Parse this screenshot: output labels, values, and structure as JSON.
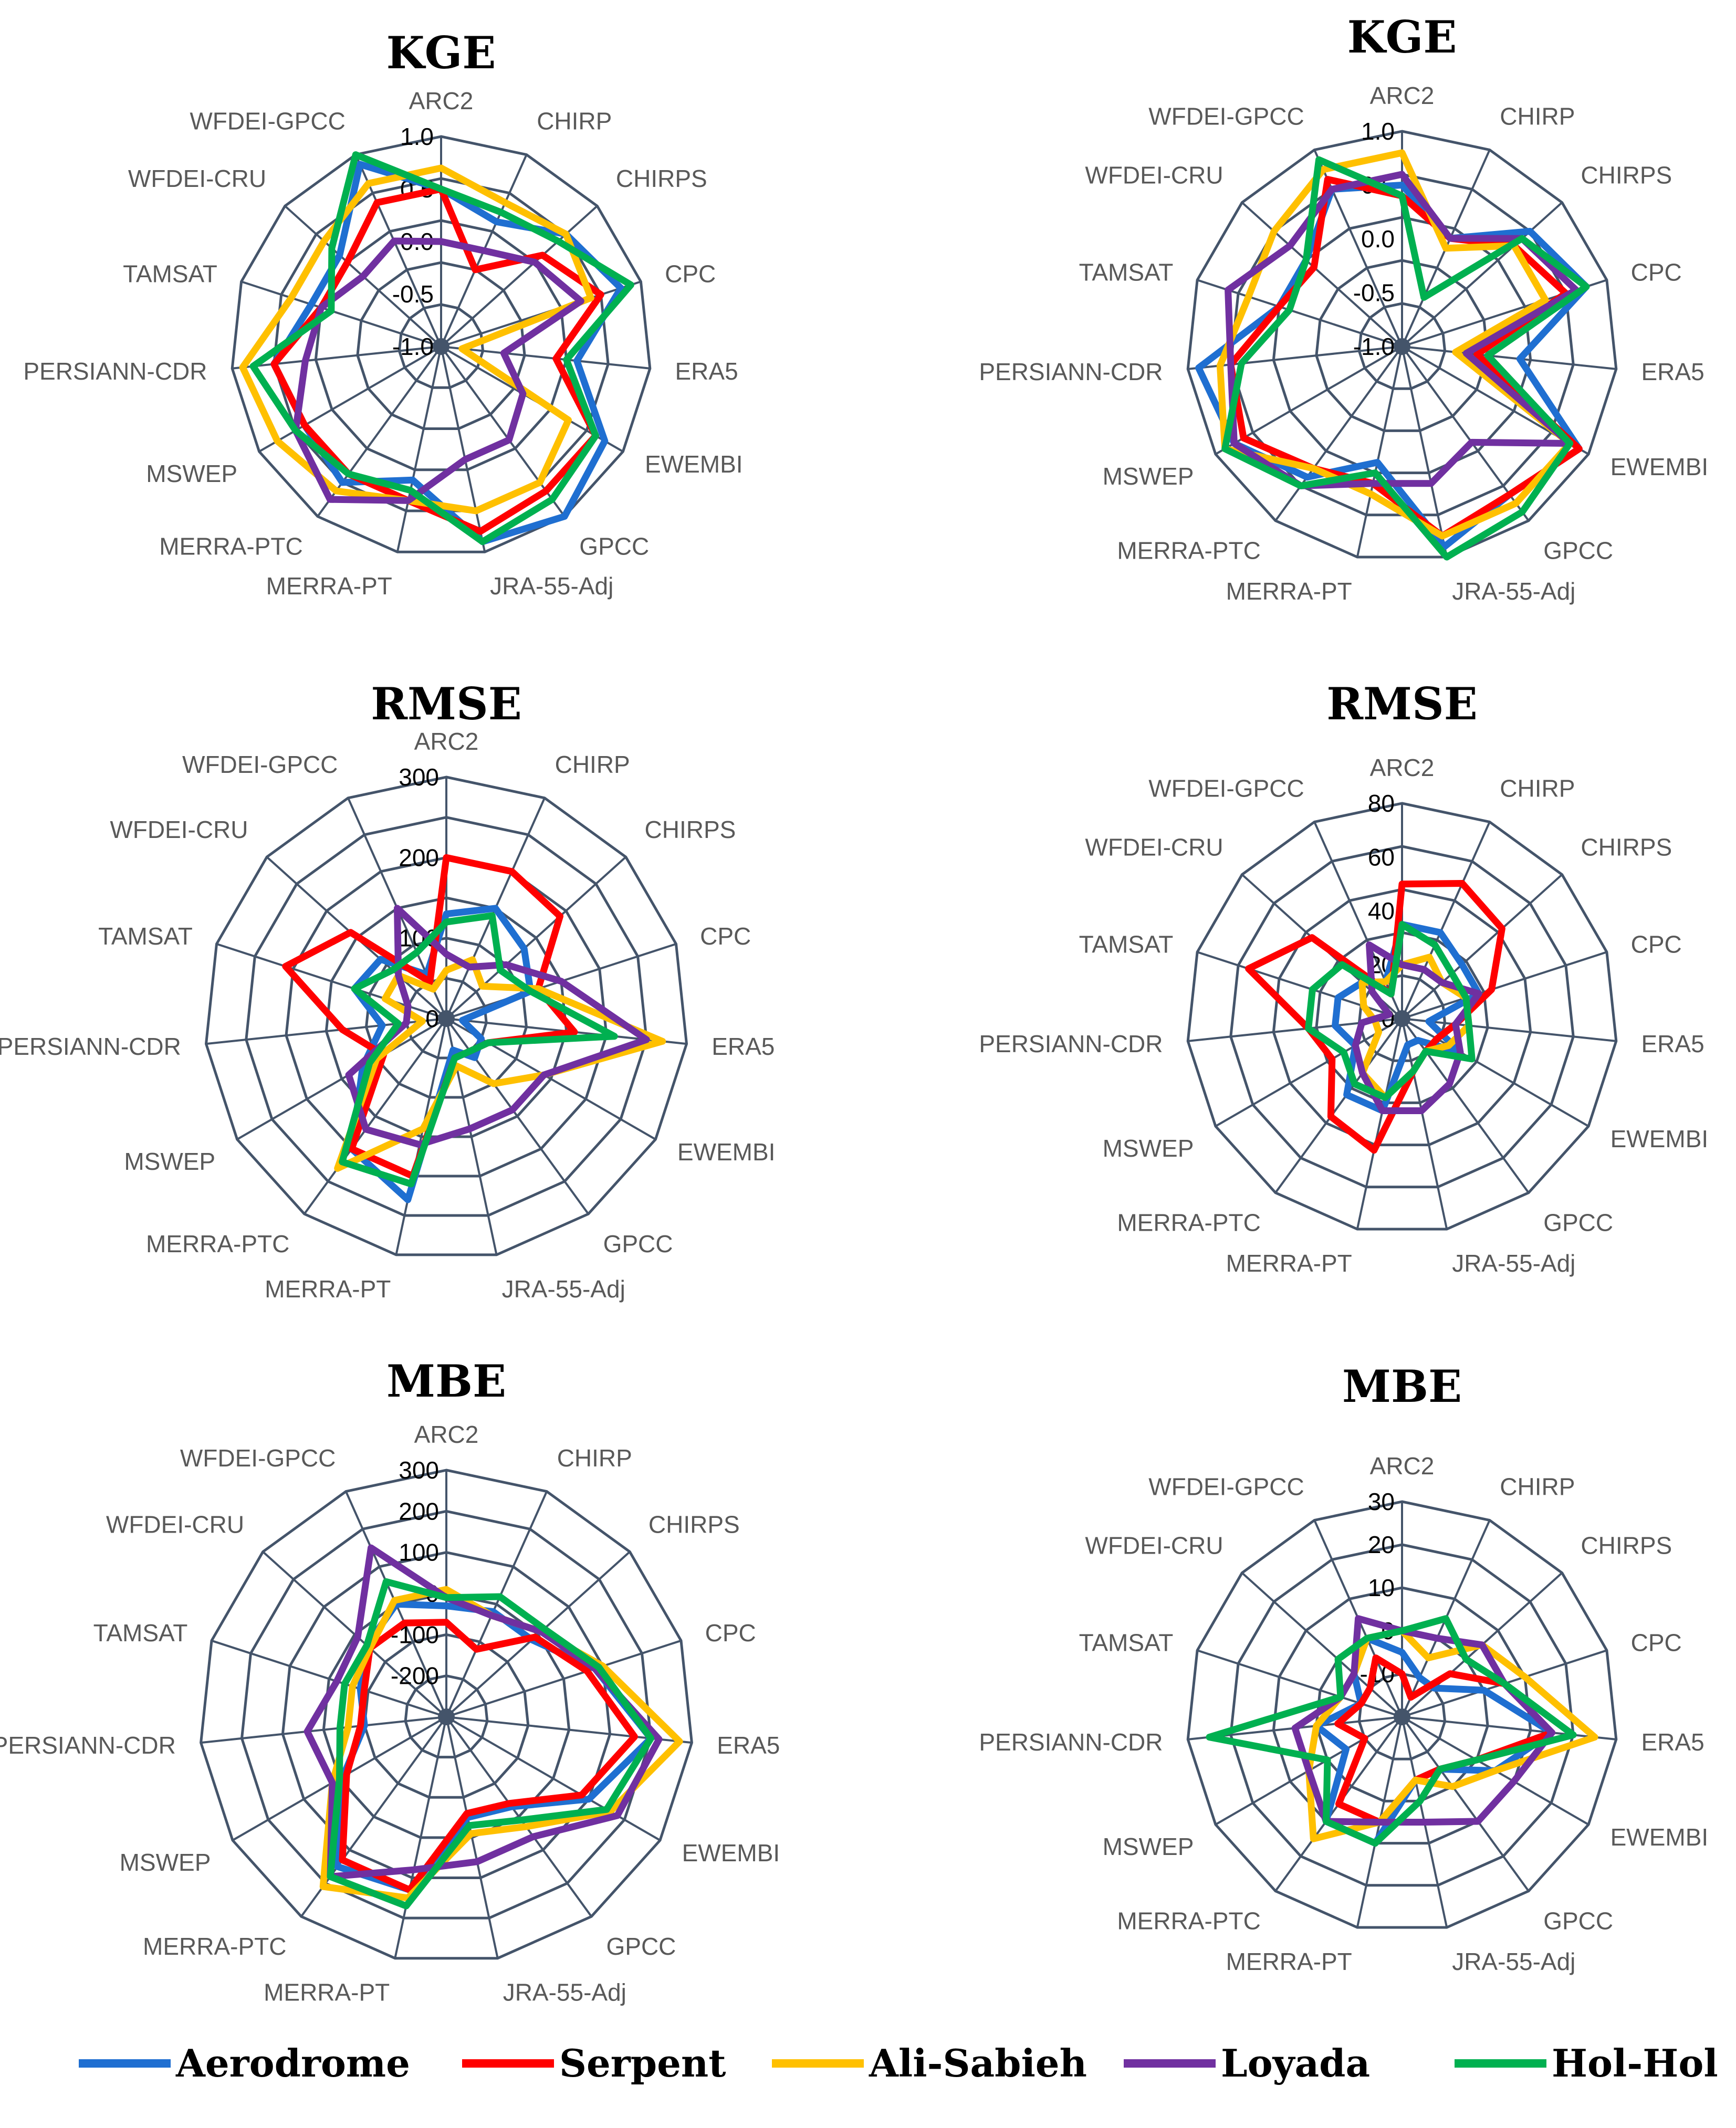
{
  "chart_data": [
    {
      "type": "radar",
      "title": "KGE",
      "axes": [
        "ARC2",
        "CHIRP",
        "CHIRPS",
        "CPC",
        "ERA5",
        "EWEMBI",
        "GPCC",
        "JRA-55-Adj",
        "MERRA-PT",
        "MERRA-PTC",
        "MSWEP",
        "PERSIANN-CDR",
        "TAMSAT",
        "WFDEI-CRU",
        "WFDEI-GPCC"
      ],
      "ticks": [
        "-1.0",
        "-0.5",
        "0.0",
        "0.5",
        "1.0"
      ],
      "rmin": -1.0,
      "rmax": 1.0,
      "series": [
        {
          "name": "Aerodrome",
          "color": "#1f6fd1",
          "values": [
            0.5,
            0.3,
            0.6,
            0.8,
            0.3,
            0.8,
            1.0,
            0.9,
            0.3,
            0.6,
            0.5,
            0.6,
            0.3,
            0.3,
            0.9
          ]
        },
        {
          "name": "Serpent",
          "color": "#ff0000",
          "values": [
            0.5,
            -0.2,
            0.3,
            0.6,
            0.1,
            0.7,
            0.7,
            0.8,
            0.5,
            0.5,
            0.5,
            0.6,
            0.2,
            0.2,
            0.5
          ]
        },
        {
          "name": "Ali-Sabieh",
          "color": "#ffc000",
          "values": [
            0.7,
            0.5,
            0.6,
            0.5,
            -0.8,
            0.4,
            0.6,
            0.6,
            0.5,
            0.7,
            0.8,
            0.9,
            0.5,
            0.5,
            0.7
          ]
        },
        {
          "name": "Loyada",
          "color": "#7030a0",
          "values": [
            0.0,
            0.0,
            0.2,
            0.4,
            -0.4,
            -0.1,
            0.1,
            0.1,
            0.5,
            0.8,
            0.6,
            0.3,
            0.2,
            0.0,
            0.1
          ]
        },
        {
          "name": "Hol-Hol",
          "color": "#00b050",
          "values": [
            0.5,
            0.4,
            0.5,
            0.9,
            0.2,
            0.7,
            0.8,
            0.9,
            0.4,
            0.5,
            0.6,
            0.8,
            0.1,
            0.4,
            1.0
          ]
        }
      ]
    },
    {
      "type": "radar",
      "title": "KGE",
      "axes": [
        "ARC2",
        "CHIRP",
        "CHIRPS",
        "CPC",
        "ERA5",
        "EWEMBI",
        "GPCC",
        "JRA-55-Adj",
        "MERRA-PT",
        "MERRA-PTC",
        "MSWEP",
        "PERSIANN-CDR",
        "TAMSAT",
        "WFDEI-CRU",
        "WFDEI-GPCC"
      ],
      "ticks": [
        "-1.0",
        "-0.5",
        "0.0",
        "0.5",
        "1.0"
      ],
      "rmin": -1.0,
      "rmax": 1.0,
      "series": [
        {
          "name": "Aerodrome",
          "color": "#1f6fd1",
          "values": [
            0.5,
            0.1,
            0.6,
            0.8,
            0.1,
            0.9,
            0.7,
            0.9,
            0.1,
            0.5,
            0.8,
            0.9,
            0.2,
            0.2,
            0.6
          ]
        },
        {
          "name": "Serpent",
          "color": "#ff0000",
          "values": [
            0.4,
            0.1,
            0.4,
            0.6,
            -0.3,
            0.9,
            0.7,
            0.8,
            0.3,
            0.4,
            0.7,
            0.6,
            0.2,
            0.1,
            0.7
          ]
        },
        {
          "name": "Ali-Sabieh",
          "color": "#ffc000",
          "values": [
            0.8,
            0.0,
            0.4,
            0.4,
            -0.5,
            0.8,
            0.8,
            0.8,
            0.4,
            0.4,
            0.9,
            0.7,
            0.5,
            0.6,
            0.8
          ]
        },
        {
          "name": "Loyada",
          "color": "#7030a0",
          "values": [
            0.6,
            0.1,
            0.5,
            0.7,
            -0.4,
            0.8,
            0.1,
            0.3,
            0.3,
            0.6,
            0.8,
            0.6,
            0.7,
            0.4,
            0.6
          ]
        },
        {
          "name": "Hol-Hol",
          "color": "#00b050",
          "values": [
            0.4,
            -0.5,
            0.5,
            0.8,
            -0.2,
            0.8,
            0.9,
            1.0,
            0.2,
            0.6,
            0.9,
            0.5,
            0.1,
            0.2,
            0.9
          ]
        }
      ]
    },
    {
      "type": "radar",
      "title": "RMSE",
      "axes": [
        "ARC2",
        "CHIRP",
        "CHIRPS",
        "CPC",
        "ERA5",
        "EWEMBI",
        "GPCC",
        "JRA-55-Adj",
        "MERRA-PT",
        "MERRA-PTC",
        "MSWEP",
        "PERSIANN-CDR",
        "TAMSAT",
        "WFDEI-CRU",
        "WFDEI-GPCC"
      ],
      "ticks": [
        "0",
        "100",
        "200",
        "300"
      ],
      "rmin": 0,
      "rmax": 300,
      "series": [
        {
          "name": "Aerodrome",
          "color": "#1f6fd1",
          "values": [
            130,
            150,
            130,
            110,
            20,
            50,
            60,
            40,
            230,
            200,
            120,
            80,
            120,
            110,
            60
          ]
        },
        {
          "name": "Serpent",
          "color": "#ff0000",
          "values": [
            200,
            200,
            190,
            120,
            160,
            60,
            50,
            50,
            200,
            200,
            90,
            130,
            210,
            160,
            50
          ]
        },
        {
          "name": "Ali-Sabieh",
          "color": "#ffc000",
          "values": [
            60,
            80,
            60,
            120,
            270,
            140,
            100,
            60,
            140,
            230,
            100,
            30,
            80,
            80,
            40
          ]
        },
        {
          "name": "Loyada",
          "color": "#7030a0",
          "values": [
            80,
            70,
            100,
            150,
            250,
            140,
            140,
            140,
            160,
            170,
            140,
            50,
            50,
            80,
            150
          ]
        },
        {
          "name": "Hol-Hol",
          "color": "#00b050",
          "values": [
            120,
            140,
            90,
            110,
            210,
            60,
            50,
            50,
            210,
            220,
            110,
            60,
            120,
            90,
            90
          ]
        }
      ]
    },
    {
      "type": "radar",
      "title": "RMSE",
      "axes": [
        "ARC2",
        "CHIRP",
        "CHIRPS",
        "CPC",
        "ERA5",
        "EWEMBI",
        "GPCC",
        "JRA-55-Adj",
        "MERRA-PT",
        "MERRA-PTC",
        "MSWEP",
        "PERSIANN-CDR",
        "TAMSAT",
        "WFDEI-CRU",
        "WFDEI-GPCC"
      ],
      "ticks": [
        "0",
        "20",
        "40",
        "60",
        "80"
      ],
      "rmin": 0,
      "rmax": 80,
      "series": [
        {
          "name": "Aerodrome",
          "color": "#1f6fd1",
          "values": [
            35,
            35,
            30,
            30,
            10,
            25,
            10,
            10,
            35,
            35,
            20,
            25,
            25,
            20,
            15
          ]
        },
        {
          "name": "Serpent",
          "color": "#ff0000",
          "values": [
            50,
            55,
            50,
            35,
            20,
            15,
            15,
            20,
            50,
            45,
            30,
            35,
            60,
            45,
            10
          ]
        },
        {
          "name": "Ali-Sabieh",
          "color": "#ffc000",
          "values": [
            20,
            25,
            20,
            25,
            25,
            20,
            15,
            20,
            30,
            25,
            10,
            10,
            15,
            20,
            15
          ]
        },
        {
          "name": "Loyada",
          "color": "#7030a0",
          "values": [
            20,
            20,
            20,
            30,
            20,
            25,
            30,
            35,
            35,
            25,
            20,
            15,
            5,
            15,
            30
          ]
        },
        {
          "name": "Hol-Hol",
          "color": "#00b050",
          "values": [
            35,
            30,
            25,
            25,
            25,
            30,
            15,
            20,
            30,
            30,
            25,
            35,
            35,
            30,
            10
          ]
        }
      ]
    },
    {
      "type": "radar",
      "title": "MBE",
      "axes": [
        "ARC2",
        "CHIRP",
        "CHIRPS",
        "CPC",
        "ERA5",
        "EWEMBI",
        "GPCC",
        "JRA-55-Adj",
        "MERRA-PT",
        "MERRA-PTC",
        "MSWEP",
        "PERSIANN-CDR",
        "TAMSAT",
        "WFDEI-CRU",
        "WFDEI-GPCC"
      ],
      "ticks": [
        "-200",
        "-100",
        "0",
        "100",
        "200",
        "300"
      ],
      "rmin": -300,
      "rmax": 300,
      "series": [
        {
          "name": "Aerodrome",
          "color": "#1f6fd1",
          "values": [
            -30,
            -20,
            -20,
            80,
            200,
            100,
            -30,
            -50,
            130,
            150,
            -10,
            -100,
            -80,
            -40,
            0
          ]
        },
        {
          "name": "Serpent",
          "color": "#ff0000",
          "values": [
            -70,
            -120,
            -10,
            60,
            160,
            80,
            -40,
            -60,
            130,
            130,
            -20,
            -90,
            -90,
            -50,
            -50
          ]
        },
        {
          "name": "Ali-Sabieh",
          "color": "#ffc000",
          "values": [
            10,
            -30,
            10,
            100,
            270,
            160,
            30,
            -10,
            150,
            210,
            20,
            -60,
            -60,
            -50,
            10
          ]
        },
        {
          "name": "Loyada",
          "color": "#7030a0",
          "values": [
            -10,
            -30,
            10,
            80,
            220,
            180,
            60,
            60,
            80,
            180,
            20,
            40,
            -20,
            -10,
            150
          ]
        },
        {
          "name": "Hol-Hol",
          "color": "#00b050",
          "values": [
            -10,
            20,
            20,
            90,
            200,
            150,
            10,
            -30,
            170,
            180,
            0,
            -40,
            -40,
            -40,
            60
          ]
        }
      ]
    },
    {
      "type": "radar",
      "title": "MBE",
      "axes": [
        "ARC2",
        "CHIRP",
        "CHIRPS",
        "CPC",
        "ERA5",
        "EWEMBI",
        "GPCC",
        "JRA-55-Adj",
        "MERRA-PT",
        "MERRA-PTC",
        "MSWEP",
        "PERSIANN-CDR",
        "TAMSAT",
        "WFDEI-CRU",
        "WFDEI-GPCC"
      ],
      "ticks": [
        "-10",
        "0",
        "10",
        "20",
        "30"
      ],
      "rmin": -20,
      "rmax": 30,
      "series": [
        {
          "name": "Aerodrome",
          "color": "#1f6fd1",
          "values": [
            -5,
            -10,
            -10,
            0,
            15,
            5,
            -5,
            -5,
            10,
            10,
            -5,
            0,
            -10,
            -5,
            0
          ]
        },
        {
          "name": "Serpent",
          "color": "#ff0000",
          "values": [
            -10,
            -15,
            -5,
            5,
            15,
            0,
            -5,
            -5,
            5,
            5,
            -10,
            -5,
            -10,
            -10,
            -5
          ]
        },
        {
          "name": "Ali-Sabieh",
          "color": "#ffc000",
          "values": [
            0,
            -5,
            5,
            10,
            25,
            5,
            0,
            -5,
            5,
            15,
            5,
            0,
            -5,
            -5,
            0
          ]
        },
        {
          "name": "Loyada",
          "color": "#7030a0",
          "values": [
            0,
            0,
            5,
            5,
            15,
            10,
            10,
            5,
            5,
            10,
            5,
            5,
            -5,
            -5,
            5
          ]
        },
        {
          "name": "Hol-Hol",
          "color": "#00b050",
          "values": [
            0,
            5,
            0,
            5,
            20,
            0,
            -5,
            0,
            10,
            10,
            0,
            25,
            -5,
            0,
            0
          ]
        }
      ]
    }
  ],
  "legend": [
    {
      "name": "Aerodrome",
      "color": "#1f6fd1"
    },
    {
      "name": "Serpent",
      "color": "#ff0000"
    },
    {
      "name": "Ali-Sabieh",
      "color": "#ffc000"
    },
    {
      "name": "Loyada",
      "color": "#7030a0"
    },
    {
      "name": "Hol-Hol",
      "color": "#00b050"
    }
  ]
}
